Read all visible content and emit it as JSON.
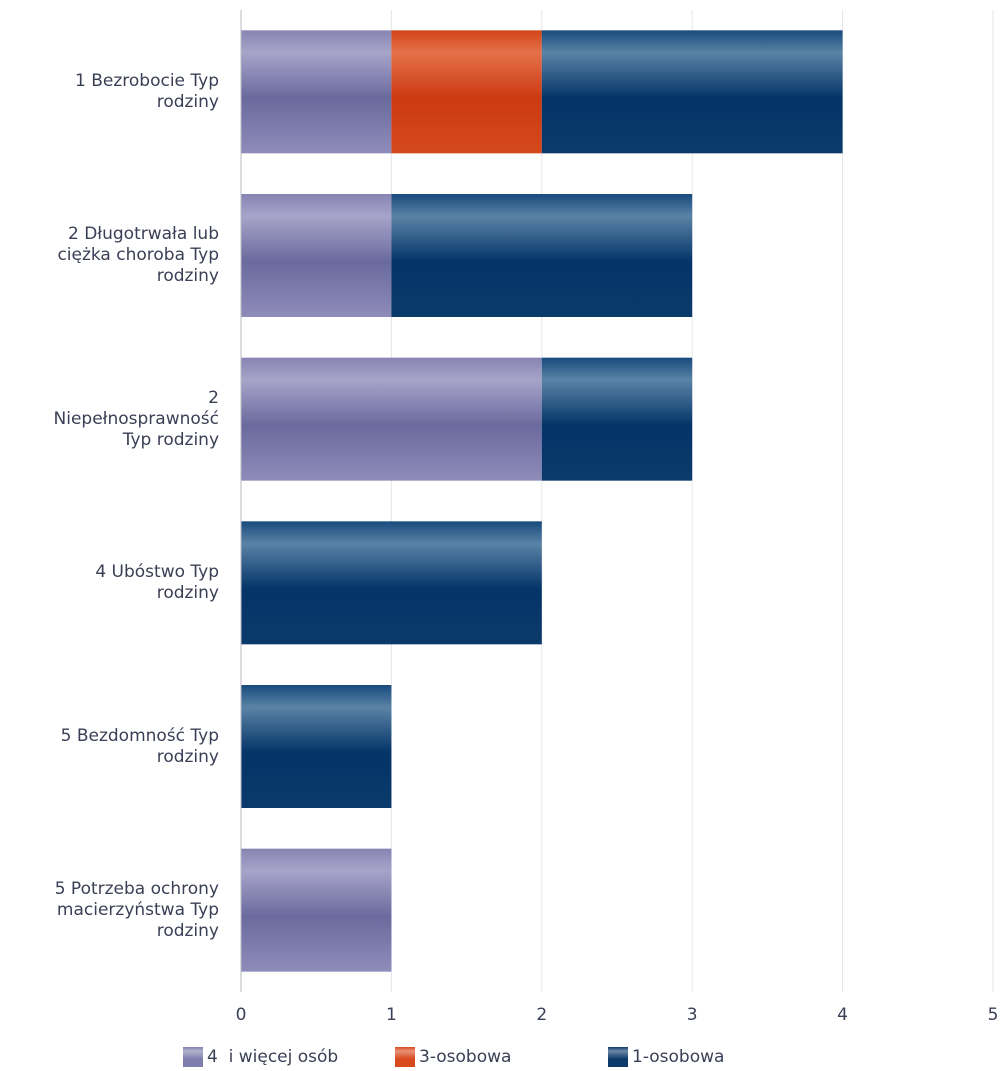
{
  "chart_data": {
    "type": "bar",
    "orientation": "horizontal",
    "stacked": true,
    "categories": [
      [
        "1 Bezrobocie Typ",
        "rodziny"
      ],
      [
        "2 Długotrwała lub",
        "ciężka choroba Typ",
        "rodziny"
      ],
      [
        "2",
        "Niepełnosprawność",
        "Typ rodziny"
      ],
      [
        "4 Ubóstwo Typ",
        "rodziny"
      ],
      [
        "5 Bezdomność Typ",
        "rodziny"
      ],
      [
        "5 Potrzeba ochrony",
        "macierzyństwa Typ",
        "rodziny"
      ]
    ],
    "series": [
      {
        "name": "4  i więcej osób",
        "color": "#7f7fae",
        "values": [
          1,
          1,
          2,
          0,
          0,
          1
        ]
      },
      {
        "name": "3-osobowa",
        "color": "#d94a1e",
        "values": [
          1,
          0,
          0,
          0,
          0,
          0
        ]
      },
      {
        "name": "1-osobowa",
        "color": "#0e3a6b",
        "values": [
          2,
          2,
          1,
          2,
          1,
          0
        ]
      }
    ],
    "xlim": [
      0,
      5
    ],
    "xticks": [
      "0",
      "1",
      "2",
      "3",
      "4",
      "5"
    ],
    "grid": true,
    "legend_position": "bottom",
    "title": "",
    "xlabel": "",
    "ylabel": ""
  }
}
